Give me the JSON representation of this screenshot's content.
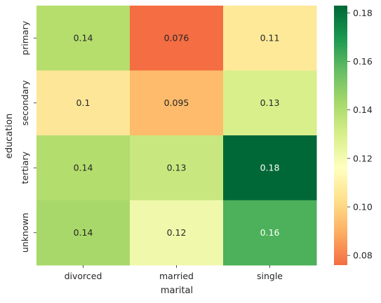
{
  "chart_data": {
    "type": "heatmap",
    "xlabel": "marital",
    "ylabel": "education",
    "x_categories": [
      "divorced",
      "married",
      "single"
    ],
    "y_categories": [
      "primary",
      "secondary",
      "tertiary",
      "unknown"
    ],
    "values": [
      [
        0.14,
        0.076,
        0.11
      ],
      [
        0.1,
        0.095,
        0.13
      ],
      [
        0.14,
        0.13,
        0.18
      ],
      [
        0.14,
        0.12,
        0.16
      ]
    ],
    "cell_colors": [
      [
        "#b5de6d",
        "#f46d43",
        "#fee999"
      ],
      [
        "#fee698",
        "#fdbb6b",
        "#d9ef8b"
      ],
      [
        "#b3dd6d",
        "#c8e87f",
        "#006837"
      ],
      [
        "#a8d869",
        "#f0f9ab",
        "#4cb15a"
      ]
    ],
    "colorbar": {
      "min": 0.076,
      "max": 0.183,
      "ticks": [
        0.08,
        0.1,
        0.12,
        0.14,
        0.16,
        0.18
      ],
      "tick_labels": [
        "0.08",
        "0.10",
        "0.12",
        "0.14",
        "0.16",
        "0.18"
      ],
      "colormap": "RdYlGn",
      "stops": [
        "#f46d43",
        "#fdae61",
        "#fee08b",
        "#ffffbf",
        "#d9ef8b",
        "#a6d96a",
        "#66bd63",
        "#1a9850",
        "#006837"
      ]
    },
    "grid": false,
    "legend": "colorbar-right"
  }
}
